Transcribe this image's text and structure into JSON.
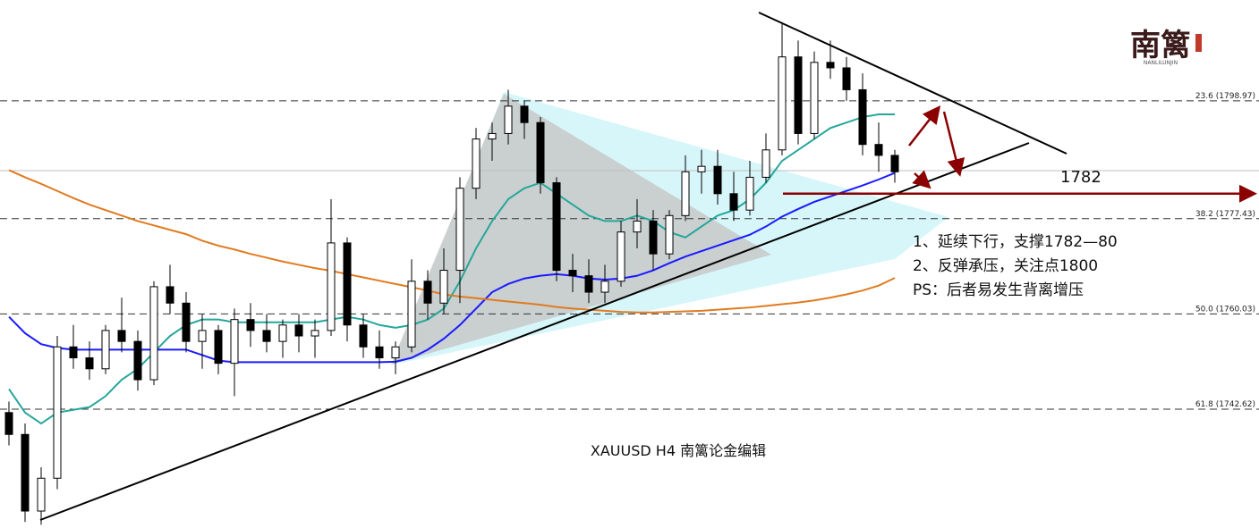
{
  "chart_data": {
    "type": "candlestick",
    "title": "XAUUSD H4  南篱论金编辑",
    "ylim": [
      1720.9,
      1817.4
    ],
    "up_color": "#ffffff",
    "down_color": "#000000",
    "open": [
      1742,
      1738,
      1724,
      1730,
      1754,
      1752,
      1750,
      1757,
      1755,
      1748,
      1765,
      1762,
      1755,
      1757,
      1751,
      1759,
      1757,
      1755,
      1758,
      1756,
      1757,
      1773,
      1758,
      1754,
      1752,
      1754,
      1766,
      1762,
      1768,
      1783,
      1792,
      1793,
      1798,
      1795,
      1784,
      1768,
      1767,
      1764,
      1766,
      1775,
      1777,
      1771,
      1778,
      1786,
      1787,
      1782,
      1779,
      1785,
      1790,
      1807,
      1793,
      1806,
      1805,
      1801,
      1791,
      1789
    ],
    "high": [
      1744,
      1740,
      1732,
      1756,
      1758,
      1755,
      1758,
      1763,
      1757,
      1766,
      1769,
      1764,
      1760,
      1758,
      1761,
      1762,
      1760,
      1759,
      1760,
      1759,
      1781,
      1774,
      1760,
      1757,
      1755,
      1770,
      1768,
      1772,
      1785,
      1794,
      1795,
      1801,
      1799,
      1796,
      1785,
      1771,
      1770,
      1769,
      1777,
      1781,
      1779,
      1779,
      1789,
      1790,
      1790,
      1786,
      1788,
      1793,
      1813,
      1810,
      1808,
      1810,
      1807,
      1804,
      1795,
      1790
    ],
    "low": [
      1736,
      1722,
      1721.5,
      1728,
      1750,
      1748,
      1749,
      1753,
      1746,
      1747,
      1760,
      1753,
      1750,
      1749,
      1745,
      1754,
      1753,
      1752,
      1753,
      1752,
      1756,
      1755,
      1752,
      1750,
      1749,
      1753,
      1759,
      1760,
      1762,
      1781,
      1788,
      1791,
      1792,
      1782,
      1766,
      1764,
      1762,
      1762,
      1765,
      1772,
      1768,
      1770,
      1777,
      1782,
      1780,
      1777,
      1778,
      1784,
      1789,
      1791,
      1792,
      1803,
      1799,
      1789,
      1786,
      1784
    ],
    "close": [
      1738,
      1724,
      1730,
      1754,
      1752,
      1750,
      1757,
      1755,
      1748,
      1765,
      1762,
      1755,
      1757,
      1751,
      1759,
      1757,
      1755,
      1758,
      1756,
      1757,
      1773,
      1758,
      1754,
      1752,
      1754,
      1766,
      1762,
      1768,
      1783,
      1792,
      1793,
      1798,
      1795,
      1784,
      1768,
      1767,
      1764,
      1766,
      1775,
      1777,
      1771,
      1778,
      1786,
      1787,
      1782,
      1779,
      1785,
      1790,
      1807,
      1793,
      1806,
      1805,
      1801,
      1791,
      1789,
      1786
    ],
    "moving_averages": [
      {
        "color": "#26a69a",
        "values": [
          1746.3,
          1742,
          1740,
          1742,
          1742.5,
          1743,
          1745,
          1748,
          1750,
          1753,
          1756,
          1758,
          1759,
          1759,
          1758.5,
          1758.5,
          1758.5,
          1758.5,
          1758.5,
          1758.5,
          1759,
          1759.5,
          1759,
          1758,
          1757.5,
          1758,
          1759,
          1761,
          1766,
          1772,
          1777,
          1781,
          1783,
          1784,
          1782,
          1780,
          1778,
          1777,
          1777,
          1778,
          1777,
          1775,
          1774,
          1776,
          1778,
          1779,
          1781,
          1784,
          1788,
          1790,
          1792,
          1794,
          1795,
          1796,
          1796.5,
          1796.5
        ]
      },
      {
        "color": "#1a1aff",
        "values": [
          1759.5,
          1756.5,
          1754.5,
          1753.8,
          1753.5,
          1753.5,
          1753.5,
          1753.5,
          1753.5,
          1753.5,
          1753.5,
          1753.5,
          1752.5,
          1751.5,
          1751.2,
          1751.2,
          1751.2,
          1751.2,
          1751.2,
          1751.2,
          1751.2,
          1751.2,
          1751.2,
          1751.2,
          1751.3,
          1752,
          1753.5,
          1755.5,
          1758,
          1761,
          1764,
          1765.5,
          1766.5,
          1767,
          1767.3,
          1767,
          1766.5,
          1766.3,
          1766.5,
          1767,
          1768,
          1769.3,
          1770.5,
          1771.5,
          1772.5,
          1773.5,
          1774.5,
          1776,
          1777.8,
          1779.2,
          1780.5,
          1781.5,
          1782.5,
          1783.5,
          1784.6,
          1785.8
        ]
      },
      {
        "color": "#e07b20",
        "values": [
          1786.3,
          1785,
          1783.8,
          1782.5,
          1781.2,
          1780,
          1779,
          1778,
          1777,
          1776.2,
          1775.4,
          1774.6,
          1773.4,
          1772.5,
          1771.8,
          1771,
          1770.3,
          1769.6,
          1769,
          1768.4,
          1767.9,
          1767.3,
          1766.7,
          1766.1,
          1765.5,
          1764.9,
          1764.3,
          1763.6,
          1763.2,
          1762.9,
          1762.6,
          1762.3,
          1762,
          1761.7,
          1761.3,
          1761,
          1760.8,
          1760.6,
          1760.4,
          1760.3,
          1760.3,
          1760.4,
          1760.5,
          1760.6,
          1760.8,
          1761,
          1761.2,
          1761.5,
          1761.8,
          1762.1,
          1762.5,
          1763,
          1763.6,
          1764.3,
          1765.2,
          1766.6
        ]
      }
    ],
    "levels": [
      {
        "value": 1798.97,
        "label": "23.6 (1798.97)"
      },
      {
        "value": 1777.43,
        "label": "38.2 (1777.43)"
      },
      {
        "value": 1760.03,
        "label": "50.0 (1760.03)"
      },
      {
        "value": 1742.62,
        "label": "61.8 (1742.62)"
      }
    ],
    "price_annotation": {
      "value": 1782,
      "label": "1782",
      "color": "#8b0000"
    },
    "notes": [
      "1、延续下行，支撑1782—80",
      "2、反弹承压，关注点1800",
      "PS：后者易发生背离增压"
    ]
  },
  "logo": {
    "name": "南篱",
    "subtitle": "NANLILUNJIN"
  }
}
